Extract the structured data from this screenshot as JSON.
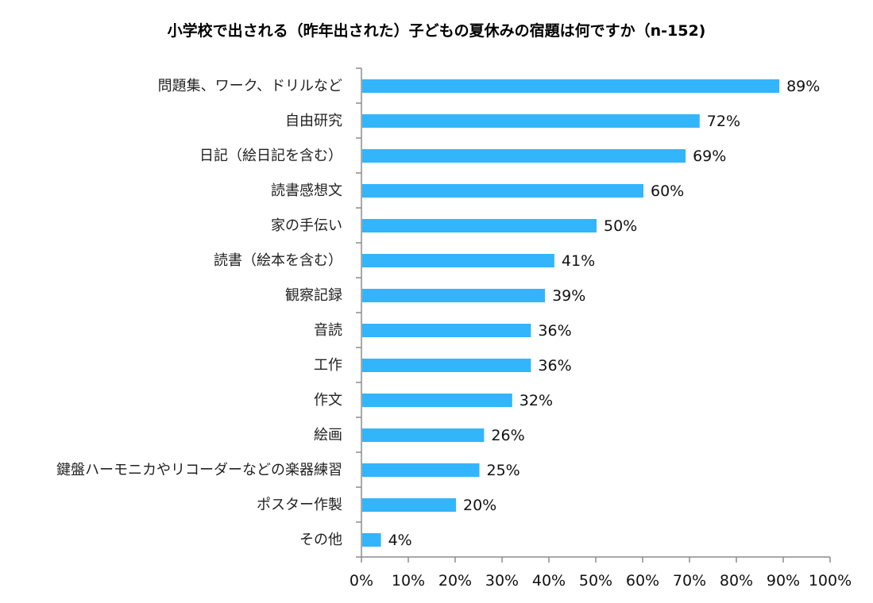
{
  "chart_data": {
    "type": "bar",
    "orientation": "horizontal",
    "title": "小学校で出される（昨年出された）子どもの夏休みの宿題は何ですか（n-152)",
    "categories": [
      "問題集、ワーク、ドリルなど",
      "自由研究",
      "日記（絵日記を含む）",
      "読書感想文",
      "家の手伝い",
      "読書（絵本を含む）",
      "観察記録",
      "音読",
      "工作",
      "作文",
      "絵画",
      "鍵盤ハーモニカやリコーダーなどの楽器練習",
      "ポスター作製",
      "その他"
    ],
    "values": [
      89,
      72,
      69,
      60,
      50,
      41,
      39,
      36,
      36,
      32,
      26,
      25,
      20,
      4
    ],
    "value_labels": [
      "89%",
      "72%",
      "69%",
      "60%",
      "50%",
      "41%",
      "39%",
      "36%",
      "36%",
      "32%",
      "26%",
      "25%",
      "20%",
      "4%"
    ],
    "xlim": [
      0,
      100
    ],
    "x_ticks": [
      "0%",
      "10%",
      "20%",
      "30%",
      "40%",
      "50%",
      "60%",
      "70%",
      "80%",
      "90%",
      "100%"
    ],
    "xlabel": "",
    "ylabel": "",
    "grid": false,
    "bar_color": "#33b5fc",
    "axis_color": "#8c8c8c"
  }
}
